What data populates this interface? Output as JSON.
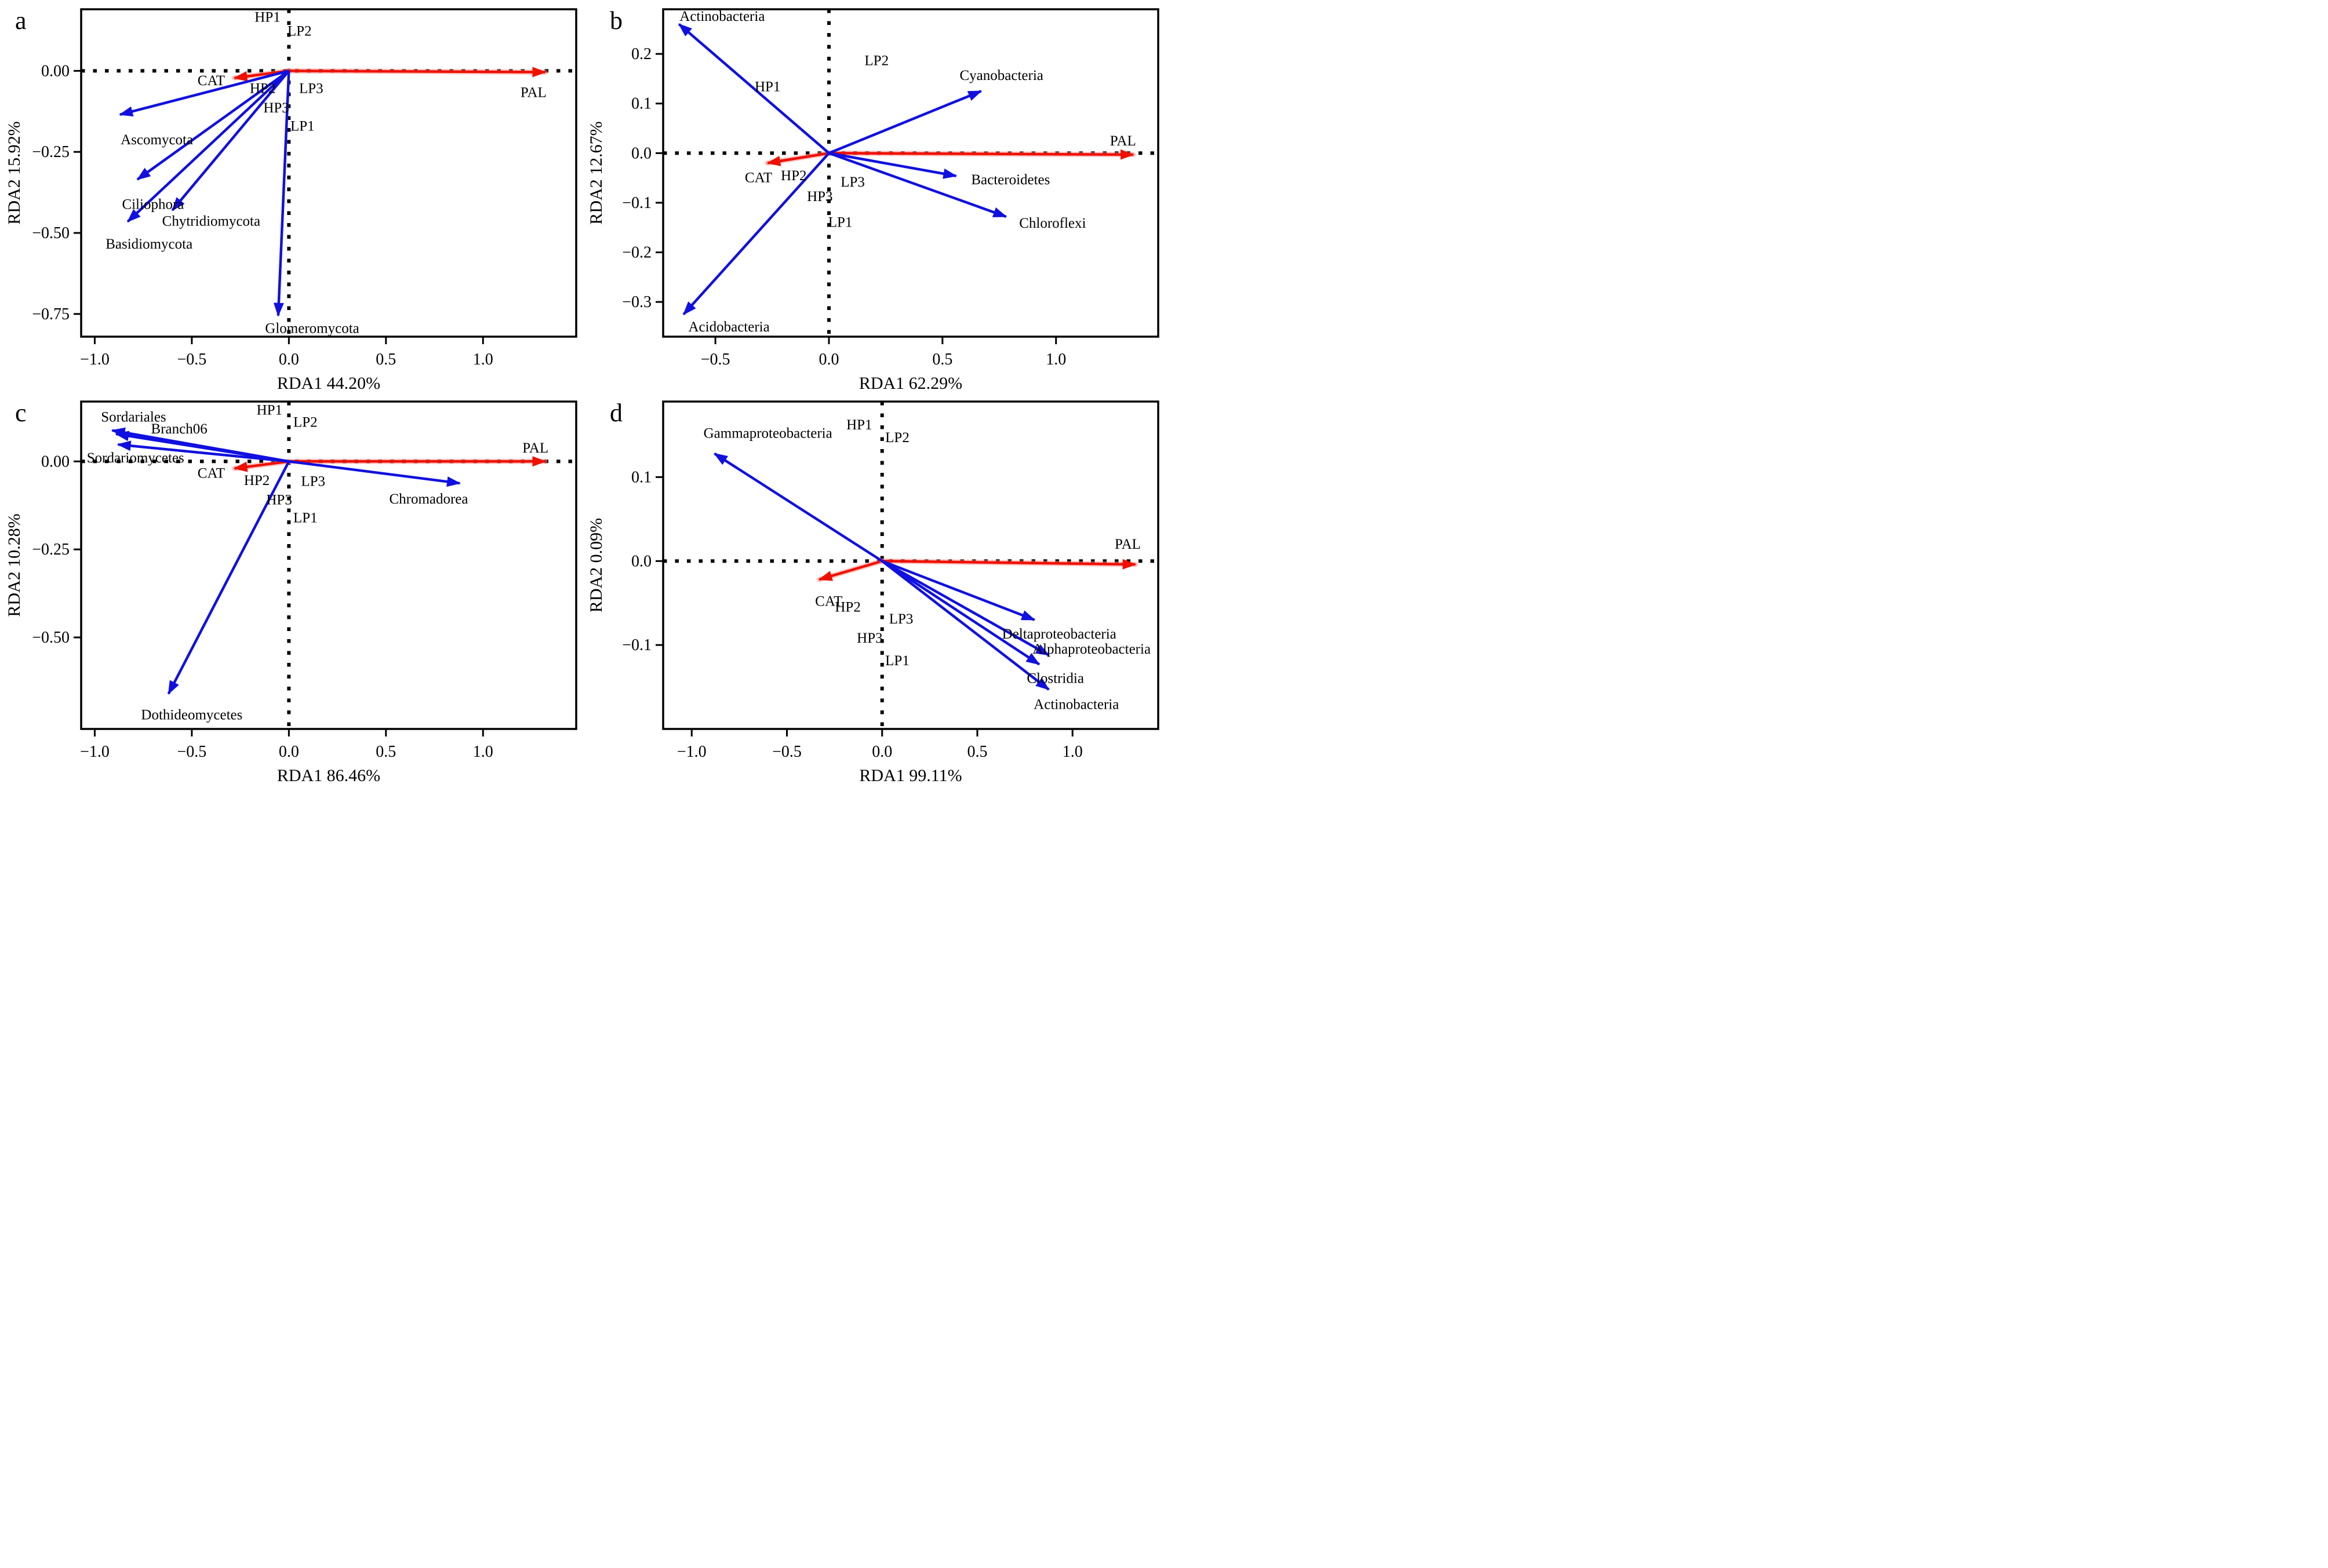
{
  "figure": {
    "background": "#ffffff",
    "description_visible_text_only": true
  },
  "colors": {
    "species_arrow": "#1010e0",
    "env_arrow": "#ee1100",
    "env_arrow_halo": "#ff8a8a",
    "axis": "#000000",
    "text": "#000000",
    "zero_line": "#000000"
  },
  "chart_data": [
    {
      "type": "scatter",
      "subtype": "rda-biplot",
      "panel": "a",
      "xlabel": "RDA1 44.20%",
      "ylabel": "RDA2 15.92%",
      "xlim": [
        -1.07,
        1.48
      ],
      "ylim": [
        -0.82,
        0.19
      ],
      "xticks": [
        -1.0,
        -0.5,
        0.0,
        0.5,
        1.0
      ],
      "xtick_labels": [
        "−1.0",
        "−0.5",
        "0.0",
        "0.5",
        "1.0"
      ],
      "yticks": [
        0.0,
        -0.25,
        -0.5,
        -0.75
      ],
      "ytick_labels": [
        "0.00",
        "−0.25",
        "−0.50",
        "−0.75"
      ],
      "zero_lines": "dotted",
      "legend": "none",
      "species_arrows": [
        {
          "name": "Ascomycota",
          "x": -0.87,
          "y": -0.135,
          "label_x": -0.68,
          "label_y": -0.21
        },
        {
          "name": "Ciliophora",
          "x": -0.78,
          "y": -0.335,
          "label_x": -0.7,
          "label_y": -0.41
        },
        {
          "name": "Chytridiomycota",
          "x": -0.6,
          "y": -0.43,
          "label_x": -0.4,
          "label_y": -0.462
        },
        {
          "name": "Basidiomycota",
          "x": -0.83,
          "y": -0.465,
          "label_x": -0.72,
          "label_y": -0.532
        },
        {
          "name": "Glomeromycota",
          "x": -0.055,
          "y": -0.755,
          "label_x": 0.12,
          "label_y": -0.792
        }
      ],
      "env_arrows": [
        {
          "name": "CAT",
          "x": -0.28,
          "y": -0.022,
          "label_x": -0.4,
          "label_y": -0.028
        },
        {
          "name": "PAL",
          "x": 1.32,
          "y": -0.004,
          "label_x": 1.26,
          "label_y": -0.065
        }
      ],
      "samples": [
        {
          "name": "HP1",
          "x": -0.11,
          "y": 0.168
        },
        {
          "name": "LP2",
          "x": 0.055,
          "y": 0.125
        },
        {
          "name": "HP2",
          "x": -0.135,
          "y": -0.052
        },
        {
          "name": "LP3",
          "x": 0.115,
          "y": -0.052
        },
        {
          "name": "HP3",
          "x": -0.065,
          "y": -0.112
        },
        {
          "name": "LP1",
          "x": 0.07,
          "y": -0.168
        }
      ]
    },
    {
      "type": "scatter",
      "subtype": "rda-biplot",
      "panel": "b",
      "xlabel": "RDA1 62.29%",
      "ylabel": "RDA2 12.67%",
      "xlim": [
        -0.73,
        1.45
      ],
      "ylim": [
        -0.37,
        0.29
      ],
      "xticks": [
        -0.5,
        0.0,
        0.5,
        1.0
      ],
      "xtick_labels": [
        "−0.5",
        "0.0",
        "0.5",
        "1.0"
      ],
      "yticks": [
        0.2,
        0.1,
        0.0,
        -0.1,
        -0.2,
        -0.3
      ],
      "ytick_labels": [
        "0.2",
        "0.1",
        "0.0",
        "−0.1",
        "−0.2",
        "−0.3"
      ],
      "zero_lines": "dotted",
      "legend": "none",
      "species_arrows": [
        {
          "name": "Actinobacteria",
          "x": -0.66,
          "y": 0.26,
          "label_x": -0.47,
          "label_y": 0.277
        },
        {
          "name": "Cyanobacteria",
          "x": 0.67,
          "y": 0.125,
          "label_x": 0.76,
          "label_y": 0.158
        },
        {
          "name": "Bacteroidetes",
          "x": 0.56,
          "y": -0.046,
          "label_x": 0.8,
          "label_y": -0.052
        },
        {
          "name": "Chloroflexi",
          "x": 0.78,
          "y": -0.128,
          "label_x": 0.985,
          "label_y": -0.14
        },
        {
          "name": "Acidobacteria",
          "x": -0.64,
          "y": -0.325,
          "label_x": -0.44,
          "label_y": -0.349
        }
      ],
      "env_arrows": [
        {
          "name": "CAT",
          "x": -0.27,
          "y": -0.02,
          "label_x": -0.31,
          "label_y": -0.048
        },
        {
          "name": "PAL",
          "x": 1.34,
          "y": -0.003,
          "label_x": 1.295,
          "label_y": 0.026
        }
      ],
      "samples": [
        {
          "name": "HP1",
          "x": -0.27,
          "y": 0.135
        },
        {
          "name": "LP2",
          "x": 0.21,
          "y": 0.188
        },
        {
          "name": "HP2",
          "x": -0.155,
          "y": -0.044
        },
        {
          "name": "LP3",
          "x": 0.105,
          "y": -0.057
        },
        {
          "name": "HP3",
          "x": -0.04,
          "y": -0.086
        },
        {
          "name": "LP1",
          "x": 0.05,
          "y": -0.138
        }
      ]
    },
    {
      "type": "scatter",
      "subtype": "rda-biplot",
      "panel": "c",
      "xlabel": "RDA1 86.46%",
      "ylabel": "RDA2 10.28%",
      "xlim": [
        -1.07,
        1.48
      ],
      "ylim": [
        -0.76,
        0.17
      ],
      "xticks": [
        -1.0,
        -0.5,
        0.0,
        0.5,
        1.0
      ],
      "xtick_labels": [
        "−1.0",
        "−0.5",
        "0.0",
        "0.5",
        "1.0"
      ],
      "yticks": [
        0.0,
        -0.25,
        -0.5
      ],
      "ytick_labels": [
        "0.00",
        "−0.25",
        "−0.50"
      ],
      "zero_lines": "dotted",
      "legend": "none",
      "species_arrows": [
        {
          "name": "Sordariales",
          "x": -0.91,
          "y": 0.088,
          "label_x": -0.8,
          "label_y": 0.128
        },
        {
          "name": "Branch06",
          "x": -0.89,
          "y": 0.078,
          "label_x": -0.565,
          "label_y": 0.094
        },
        {
          "name": "Sordariomycetes",
          "x": -0.88,
          "y": 0.048,
          "label_x": -0.79,
          "label_y": 0.012
        },
        {
          "name": "Chromadorea",
          "x": 0.88,
          "y": -0.062,
          "label_x": 0.72,
          "label_y": -0.105
        },
        {
          "name": "Dothideomycetes",
          "x": -0.62,
          "y": -0.66,
          "label_x": -0.5,
          "label_y": -0.718
        }
      ],
      "env_arrows": [
        {
          "name": "CAT",
          "x": -0.28,
          "y": -0.02,
          "label_x": -0.4,
          "label_y": -0.032
        },
        {
          "name": "PAL",
          "x": 1.32,
          "y": 0.0,
          "label_x": 1.27,
          "label_y": 0.04
        }
      ],
      "samples": [
        {
          "name": "HP1",
          "x": -0.1,
          "y": 0.148
        },
        {
          "name": "LP2",
          "x": 0.085,
          "y": 0.113
        },
        {
          "name": "HP2",
          "x": -0.165,
          "y": -0.052
        },
        {
          "name": "LP3",
          "x": 0.125,
          "y": -0.055
        },
        {
          "name": "HP3",
          "x": -0.05,
          "y": -0.107
        },
        {
          "name": "LP1",
          "x": 0.085,
          "y": -0.158
        }
      ]
    },
    {
      "type": "scatter",
      "subtype": "rda-biplot",
      "panel": "d",
      "xlabel": "RDA1 99.11%",
      "ylabel": "RDA2 0.09%",
      "xlim": [
        -1.15,
        1.45
      ],
      "ylim": [
        -0.2,
        0.19
      ],
      "xticks": [
        -1.0,
        -0.5,
        0.0,
        0.5,
        1.0
      ],
      "xtick_labels": [
        "−1.0",
        "−0.5",
        "0.0",
        "0.5",
        "1.0"
      ],
      "yticks": [
        0.1,
        0.0,
        -0.1
      ],
      "ytick_labels": [
        "0.1",
        "0.0",
        "−0.1"
      ],
      "zero_lines": "dotted",
      "legend": "none",
      "species_arrows": [
        {
          "name": "Gammaproteobacteria",
          "x": -0.88,
          "y": 0.128,
          "label_x": -0.6,
          "label_y": 0.153
        },
        {
          "name": "Deltaproteobacteria",
          "x": 0.8,
          "y": -0.07,
          "label_x": 0.93,
          "label_y": -0.086
        },
        {
          "name": "Alphaproteobacteria",
          "x": 0.875,
          "y": -0.112,
          "label_x": 1.1,
          "label_y": -0.104
        },
        {
          "name": "Clostridia",
          "x": 0.825,
          "y": -0.123,
          "label_x": 0.91,
          "label_y": -0.139
        },
        {
          "name": "Actinobacteria",
          "x": 0.875,
          "y": -0.153,
          "label_x": 1.02,
          "label_y": -0.17
        }
      ],
      "env_arrows": [
        {
          "name": "CAT",
          "x": -0.33,
          "y": -0.022,
          "label_x": -0.28,
          "label_y": -0.047
        },
        {
          "name": "PAL",
          "x": 1.33,
          "y": -0.004,
          "label_x": 1.29,
          "label_y": 0.021
        }
      ],
      "samples": [
        {
          "name": "HP1",
          "x": -0.12,
          "y": 0.163
        },
        {
          "name": "LP2",
          "x": 0.08,
          "y": 0.148
        },
        {
          "name": "HP2",
          "x": -0.18,
          "y": -0.054
        },
        {
          "name": "LP3",
          "x": 0.1,
          "y": -0.068
        },
        {
          "name": "HP3",
          "x": -0.065,
          "y": -0.091
        },
        {
          "name": "LP1",
          "x": 0.08,
          "y": -0.118
        }
      ]
    }
  ]
}
